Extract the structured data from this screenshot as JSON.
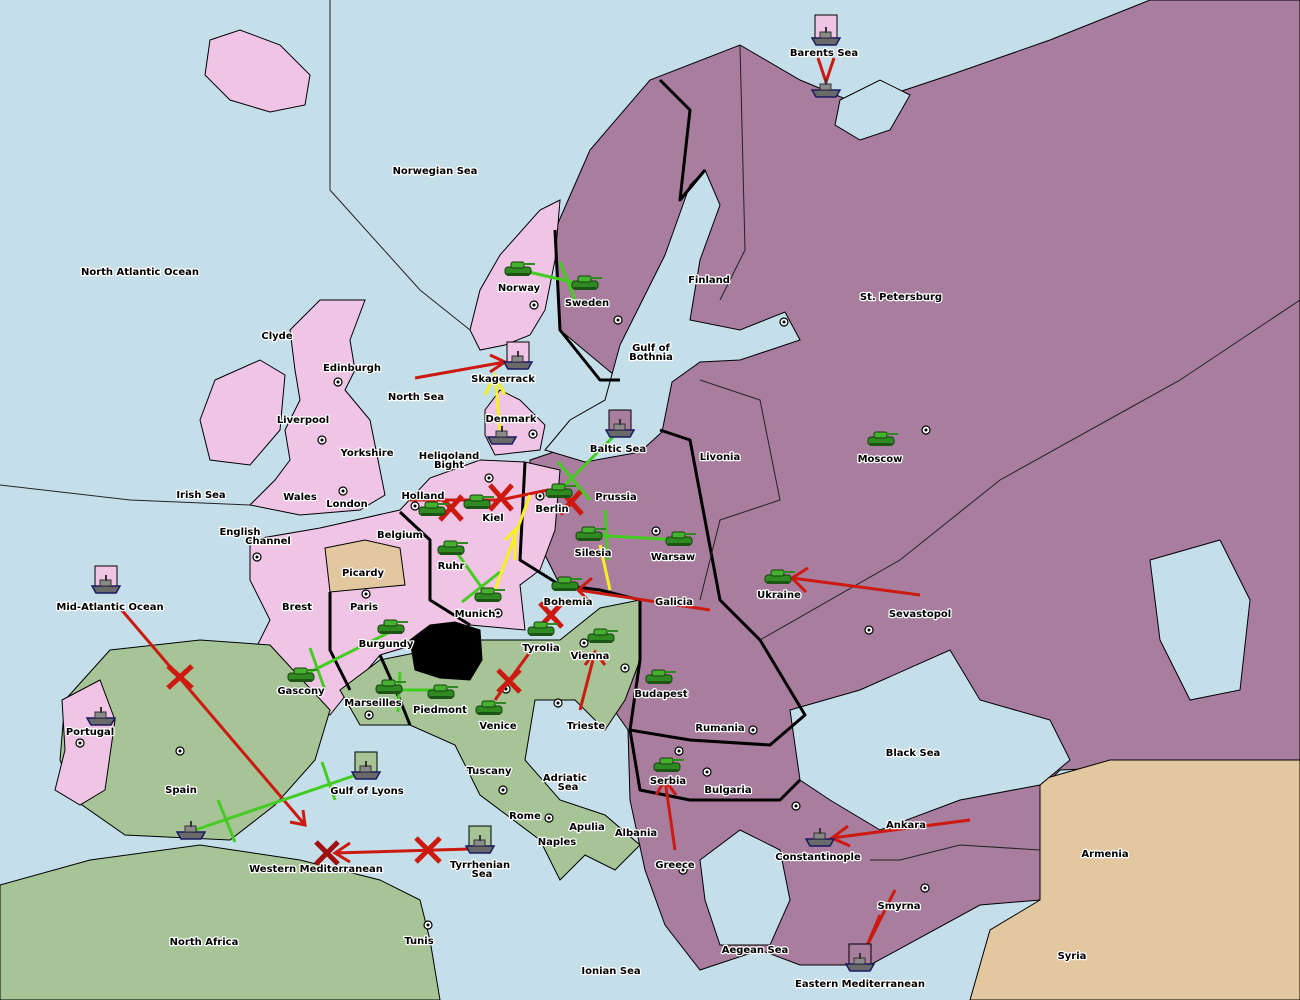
{
  "map": {
    "colors": {
      "sea": "#c5dfea",
      "england_germany": "#f0c4e4",
      "russia_turkey": "#a87d9d",
      "italy_austria_iberia": "#a6c496",
      "neutral": "#e2c79f",
      "impassable": "#000000",
      "move": "#cc1a10",
      "support": "#44cc22",
      "convoy": "#f5f020"
    },
    "labels": {
      "barents": "Barents Sea",
      "norwegian": "Norwegian Sea",
      "nao": "North Atlantic Ocean",
      "finland": "Finland",
      "stp": "St. Petersburg",
      "norway": "Norway",
      "sweden": "Sweden",
      "clyde": "Clyde",
      "edinburgh": "Edinburgh",
      "bothnia1": "Gulf of",
      "bothnia2": "Bothnia",
      "skagerrack": "Skagerrack",
      "northsea": "North Sea",
      "denmark": "Denmark",
      "liverpool": "Liverpool",
      "baltic": "Baltic Sea",
      "livonia": "Livonia",
      "moscow": "Moscow",
      "yorkshire": "Yorkshire",
      "helgo1": "Heligoland",
      "helgo2": "Bight",
      "irish": "Irish Sea",
      "holland": "Holland",
      "prussia": "Prussia",
      "wales": "Wales",
      "london": "London",
      "kiel": "Kiel",
      "berlin": "Berlin",
      "channel1": "English",
      "channel2": "Channel",
      "belgium": "Belgium",
      "silesia": "Silesia",
      "warsaw": "Warsaw",
      "ruhr": "Ruhr",
      "picardy": "Picardy",
      "ukraine": "Ukraine",
      "brest": "Brest",
      "paris": "Paris",
      "munich": "Munich",
      "galicia": "Galicia",
      "bohemia": "Bohemia",
      "sevastopol": "Sevastopol",
      "mao": "Mid-Atlantic Ocean",
      "burgundy": "Burgundy",
      "tyrolia": "Tyrolia",
      "vienna": "Vienna",
      "gascony": "Gascony",
      "budapest": "Budapest",
      "marseilles": "Marseilles",
      "piedmont": "Piedmont",
      "venice": "Venice",
      "trieste": "Trieste",
      "rumania": "Rumania",
      "portugal": "Portugal",
      "blacksea": "Black Sea",
      "tuscany": "Tuscany",
      "adriatic1": "Adriatic",
      "adriatic2": "Sea",
      "serbia": "Serbia",
      "bulgaria": "Bulgaria",
      "spain": "Spain",
      "lyons": "Gulf of Lyons",
      "rome": "Rome",
      "apulia": "Apulia",
      "ankara": "Ankara",
      "albania": "Albania",
      "naples": "Naples",
      "armenia": "Armenia",
      "constantinople": "Constantinople",
      "wmed": "Western Mediterranean",
      "tyrr1": "Tyrrhenian",
      "tyrr2": "Sea",
      "greece": "Greece",
      "smyrna": "Smyrna",
      "naf": "North Africa",
      "tunis": "Tunis",
      "aegean": "Aegean Sea",
      "syria": "Syria",
      "ionian": "Ionian Sea",
      "emed": "Eastern Mediterranean"
    },
    "units": [
      {
        "type": "army",
        "icon": "tank-icon",
        "at": "Norway"
      },
      {
        "type": "army",
        "icon": "tank-icon",
        "at": "Sweden"
      },
      {
        "type": "army",
        "icon": "tank-icon",
        "at": "Holland"
      },
      {
        "type": "army",
        "icon": "tank-icon",
        "at": "Kiel"
      },
      {
        "type": "army",
        "icon": "tank-icon",
        "at": "Berlin"
      },
      {
        "type": "army",
        "icon": "tank-icon",
        "at": "Ruhr"
      },
      {
        "type": "army",
        "icon": "tank-icon",
        "at": "Silesia"
      },
      {
        "type": "army",
        "icon": "tank-icon",
        "at": "Warsaw"
      },
      {
        "type": "army",
        "icon": "tank-icon",
        "at": "Munich"
      },
      {
        "type": "army",
        "icon": "tank-icon",
        "at": "Bohemia"
      },
      {
        "type": "army",
        "icon": "tank-icon",
        "at": "Tyrolia"
      },
      {
        "type": "army",
        "icon": "tank-icon",
        "at": "Vienna"
      },
      {
        "type": "army",
        "icon": "tank-icon",
        "at": "Burgundy"
      },
      {
        "type": "army",
        "icon": "tank-icon",
        "at": "Gascony"
      },
      {
        "type": "army",
        "icon": "tank-icon",
        "at": "Marseilles"
      },
      {
        "type": "army",
        "icon": "tank-icon",
        "at": "Piedmont"
      },
      {
        "type": "army",
        "icon": "tank-icon",
        "at": "Venice"
      },
      {
        "type": "army",
        "icon": "tank-icon",
        "at": "Budapest"
      },
      {
        "type": "army",
        "icon": "tank-icon",
        "at": "Serbia"
      },
      {
        "type": "army",
        "icon": "tank-icon",
        "at": "Ukraine"
      },
      {
        "type": "army",
        "icon": "tank-icon",
        "at": "Moscow"
      },
      {
        "type": "fleet",
        "icon": "ship-icon",
        "at": "Barents Sea"
      },
      {
        "type": "fleet",
        "icon": "ship-icon",
        "at": "Skagerrack"
      },
      {
        "type": "fleet",
        "icon": "ship-icon",
        "at": "Denmark"
      },
      {
        "type": "fleet",
        "icon": "ship-icon",
        "at": "Baltic Sea"
      },
      {
        "type": "fleet",
        "icon": "ship-icon",
        "at": "Mid-Atlantic Ocean"
      },
      {
        "type": "fleet",
        "icon": "ship-icon",
        "at": "Portugal"
      },
      {
        "type": "fleet",
        "icon": "ship-icon",
        "at": "Gulf of Lyons"
      },
      {
        "type": "fleet",
        "icon": "ship-icon",
        "at": "Spain"
      },
      {
        "type": "fleet",
        "icon": "ship-icon",
        "at": "Tyrrhenian Sea"
      },
      {
        "type": "fleet",
        "icon": "ship-icon",
        "at": "Constantinople"
      },
      {
        "type": "fleet",
        "icon": "ship-icon",
        "at": "Eastern Mediterranean"
      }
    ]
  }
}
